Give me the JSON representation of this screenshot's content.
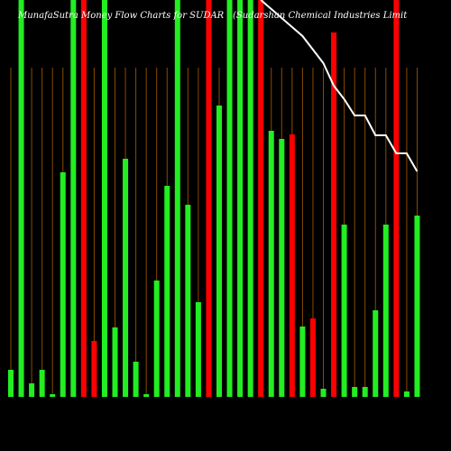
{
  "chart_data": {
    "type": "bar",
    "title": "MunafaSutra  Money Flow  Charts for SUDAR",
    "subtitle": "(Sudarshan Chemical Industries Limit",
    "ylim": [
      0,
      440
    ],
    "series": [
      {
        "name": "Money Flow",
        "colors": [
          "#22ee22",
          "#22ee22",
          "#22ee22",
          "#22ee22",
          "#22ee22",
          "#22ee22",
          "#22ee22",
          "#ff0000",
          "#ff0000",
          "#22ee22",
          "#22ee22",
          "#22ee22",
          "#22ee22",
          "#22ee22",
          "#22ee22",
          "#22ee22",
          "#22ee22",
          "#22ee22",
          "#22ee22",
          "#ff0000",
          "#22ee22",
          "#22ee22",
          "#22ee22",
          "#22ee22",
          "#ff0000",
          "#22ee22",
          "#22ee22",
          "#ff0000",
          "#22ee22",
          "#ff0000",
          "#22ee22",
          "#ff0000",
          "#22ee22",
          "#22ee22",
          "#22ee22",
          "#22ee22",
          "#22ee22",
          "#ff0000",
          "#22ee22",
          "#22ee22"
        ],
        "values": [
          30,
          440,
          15,
          30,
          3,
          249,
          440,
          440,
          62,
          440,
          77,
          264,
          39,
          3,
          129,
          234,
          440,
          213,
          105,
          440,
          323,
          440,
          440,
          440,
          440,
          295,
          286,
          291,
          78,
          87,
          9,
          404,
          191,
          11,
          11,
          96,
          191,
          440,
          6,
          201
        ]
      },
      {
        "name": "Price",
        "type": "line",
        "color": "#ffffff",
        "values": [
          null,
          null,
          null,
          null,
          null,
          null,
          null,
          null,
          null,
          null,
          null,
          null,
          null,
          null,
          null,
          null,
          null,
          null,
          null,
          null,
          null,
          null,
          null,
          null,
          440,
          430,
          420,
          410,
          400,
          385,
          370,
          345,
          330,
          312,
          312,
          290,
          290,
          270,
          270,
          250
        ]
      }
    ]
  }
}
